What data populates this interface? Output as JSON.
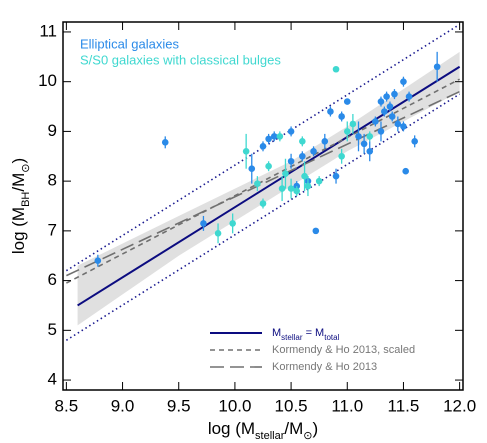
{
  "chart_data": {
    "type": "scatter",
    "x_label": [
      "log (M",
      "stellar",
      "/M",
      "⊙",
      ")"
    ],
    "y_label": [
      "log (M",
      "BH",
      "/M",
      "⊙",
      ")"
    ],
    "xlim": [
      8.47,
      12.03
    ],
    "ylim": [
      3.8,
      11.2
    ],
    "xticks": [
      8.5,
      {
        "value": 9,
        "label": "9.0"
      },
      9.5,
      {
        "value": 10,
        "label": "10.0"
      },
      10.5,
      {
        "value": 11,
        "label": "11.0"
      },
      11.5,
      {
        "value": 12,
        "label": "12.0"
      }
    ],
    "yticks": [
      4,
      5,
      6,
      7,
      8,
      9,
      10,
      11
    ],
    "band": {
      "color": "#e0e0e0",
      "x": [
        8.6,
        9.5,
        10.5,
        11.0,
        12.0
      ],
      "lower": [
        5.1,
        6.5,
        7.9,
        8.6,
        9.8
      ],
      "upper": [
        6.3,
        7.3,
        8.4,
        9.1,
        10.6
      ]
    },
    "series": [
      {
        "name": "Elliptical galaxies",
        "color": "#2a8ae8",
        "x": [
          8.78,
          9.38,
          9.72,
          10.15,
          10.25,
          10.3,
          10.35,
          10.5,
          10.5,
          10.55,
          10.6,
          10.65,
          10.7,
          10.72,
          10.8,
          10.85,
          10.9,
          10.95,
          11.0,
          11.1,
          11.15,
          11.2,
          11.25,
          11.3,
          11.3,
          11.33,
          11.35,
          11.38,
          11.4,
          11.42,
          11.45,
          11.5,
          11.5,
          11.52,
          11.55,
          11.6,
          11.8
        ],
        "values": [
          6.4,
          8.78,
          7.15,
          8.25,
          8.7,
          8.85,
          8.9,
          9.0,
          8.4,
          7.9,
          8.5,
          8.0,
          8.6,
          7.0,
          8.8,
          9.4,
          8.1,
          9.3,
          9.6,
          8.9,
          8.75,
          8.6,
          9.2,
          9.6,
          9.0,
          9.4,
          9.7,
          9.5,
          9.3,
          9.75,
          9.15,
          9.1,
          10.0,
          8.2,
          9.7,
          8.8,
          10.3
        ],
        "yerr": [
          0.12,
          0.12,
          0.15,
          0.3,
          0.1,
          0.1,
          0.1,
          0.1,
          0.15,
          0.1,
          0.1,
          0.1,
          0.1,
          0.05,
          0.15,
          0.1,
          0.15,
          0.1,
          0.05,
          0.3,
          0.2,
          0.2,
          0.1,
          0.1,
          0.2,
          0.1,
          0.1,
          0.1,
          0.1,
          0.1,
          0.15,
          0.1,
          0.1,
          0.05,
          0.1,
          0.12,
          0.3
        ]
      },
      {
        "name": "S/S0 galaxies with classical bulges",
        "color": "#3fd8d0",
        "x": [
          9.85,
          9.98,
          10.1,
          10.2,
          10.25,
          10.3,
          10.4,
          10.42,
          10.45,
          10.5,
          10.55,
          10.6,
          10.62,
          10.65,
          10.75,
          10.9,
          10.95,
          11.0,
          11.05,
          11.2
        ],
        "values": [
          6.95,
          7.15,
          8.6,
          7.95,
          7.55,
          8.3,
          8.9,
          7.85,
          8.15,
          7.85,
          7.8,
          8.8,
          8.1,
          7.9,
          8.0,
          10.25,
          8.5,
          9.0,
          9.15,
          8.9
        ],
        "yerr": [
          0.2,
          0.2,
          0.35,
          0.15,
          0.1,
          0.1,
          0.1,
          0.25,
          0.3,
          0.2,
          0.1,
          0.1,
          0.3,
          0.2,
          0.1,
          0.05,
          0.15,
          0.2,
          0.2,
          0.1
        ]
      }
    ],
    "lines": [
      {
        "name": [
          "M",
          "stellar",
          " = M",
          "total"
        ],
        "color": "#0c0c80",
        "dash": "none",
        "x": [
          8.6,
          12.0
        ],
        "values": [
          5.5,
          10.3
        ]
      },
      {
        "color": "#1a1a90",
        "dash": "1.5 3",
        "x": [
          8.5,
          12.0
        ],
        "values": [
          6.2,
          11.15
        ]
      },
      {
        "color": "#1a1a90",
        "dash": "1.5 3",
        "x": [
          8.5,
          12.0
        ],
        "values": [
          4.8,
          9.75
        ]
      },
      {
        "name": "Kormendy & Ho 2013, scaled",
        "color": "#707070",
        "dash": "5 4",
        "x": [
          8.5,
          12.0
        ],
        "values": [
          5.95,
          10.05
        ]
      },
      {
        "name": "Kormendy & Ho 2013",
        "color": "#707070",
        "dash": "14 6",
        "x": [
          8.5,
          12.0
        ],
        "values": [
          6.1,
          9.8
        ]
      }
    ]
  }
}
